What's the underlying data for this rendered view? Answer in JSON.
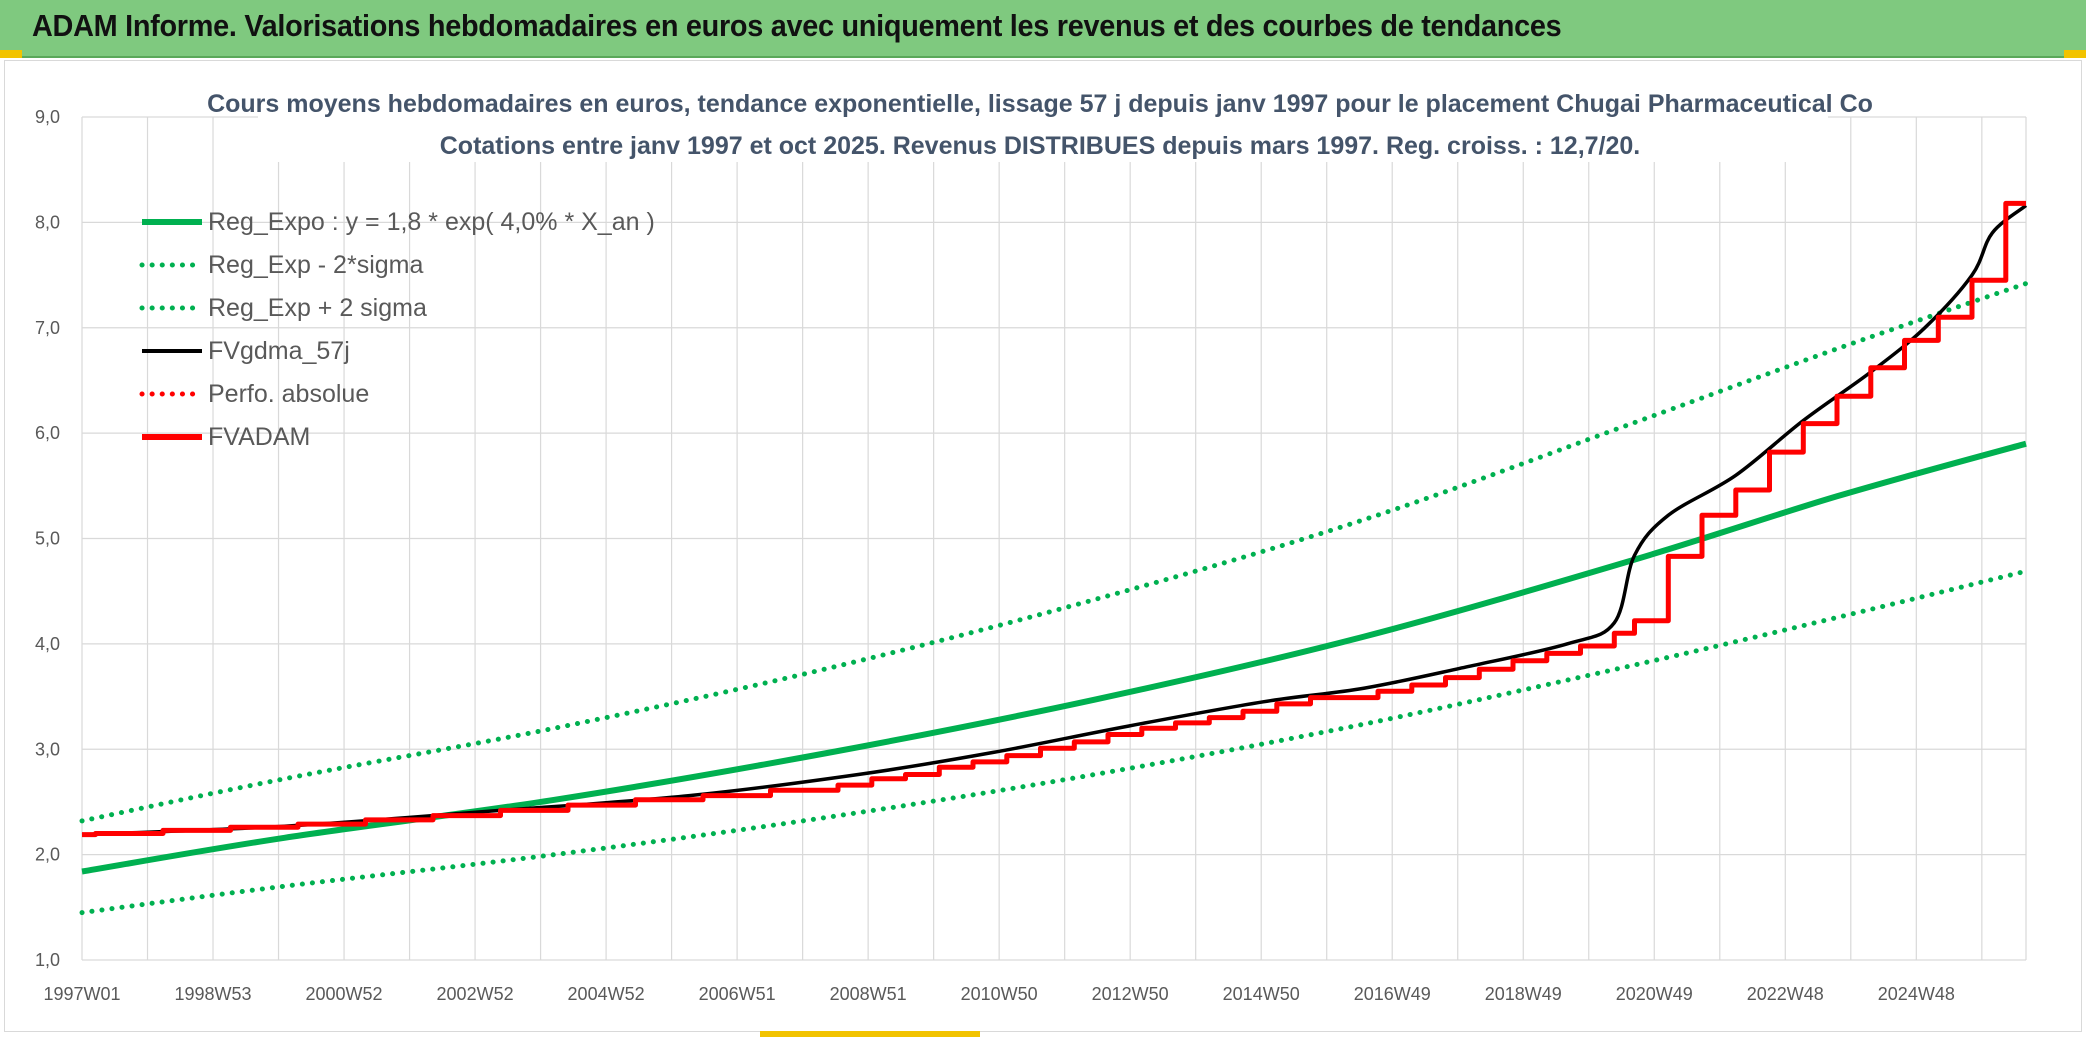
{
  "banner": {
    "title": "ADAM Informe. Valorisations hebdomadaires en euros avec uniquement les revenus et des courbes de tendances"
  },
  "colors": {
    "banner_bg": "#7fc97f",
    "green": "#00b050",
    "red": "#ff0000",
    "black": "#000000",
    "grid": "#d9d9d9",
    "title": "#44546a"
  },
  "chart_data": {
    "type": "line",
    "title": "Cours moyens hebdomadaires en euros, tendance exponentielle, lissage 57 j depuis janv 1997 pour le placement Chugai Pharmaceutical Co",
    "subtitle": "Cotations entre janv 1997 et oct 2025. Revenus DISTRIBUES depuis mars 1997. Reg. croiss. : 12,7/20.",
    "xlabel": "",
    "ylabel": "",
    "x_range": [
      1997.0,
      2025.8
    ],
    "ylim": [
      1.0,
      9.0
    ],
    "y_ticks": [
      "1,0",
      "2,0",
      "3,0",
      "4,0",
      "5,0",
      "6,0",
      "7,0",
      "8,0",
      "9,0"
    ],
    "x_tick_labels": [
      "1997W01",
      "1998W53",
      "2000W52",
      "2002W52",
      "2004W52",
      "2006W51",
      "2008W51",
      "2010W50",
      "2012W50",
      "2014W50",
      "2016W49",
      "2018W49",
      "2020W49",
      "2022W48",
      "2024W48"
    ],
    "grid": true,
    "legend_position": "top-left",
    "series": [
      {
        "name": "Reg_Expo : y = 1,8 * exp( 4,0% *  X_an )",
        "style": "solid",
        "color": "#00b050",
        "points": [
          [
            1997.0,
            1.84
          ],
          [
            2000.0,
            2.16
          ],
          [
            2004.0,
            2.52
          ],
          [
            2008.0,
            2.96
          ],
          [
            2012.0,
            3.47
          ],
          [
            2016.0,
            4.07
          ],
          [
            2020.0,
            4.8
          ],
          [
            2023.0,
            5.4
          ],
          [
            2025.8,
            5.9
          ]
        ]
      },
      {
        "name": "Reg_Exp - 2*sigma",
        "style": "dotted",
        "color": "#00b050",
        "points": [
          [
            1997.0,
            1.45
          ],
          [
            2000.0,
            1.7
          ],
          [
            2004.0,
            2.0
          ],
          [
            2008.0,
            2.35
          ],
          [
            2012.0,
            2.76
          ],
          [
            2016.0,
            3.24
          ],
          [
            2020.0,
            3.8
          ],
          [
            2023.0,
            4.25
          ],
          [
            2025.8,
            4.69
          ]
        ]
      },
      {
        "name": "Reg_Exp + 2 sigma",
        "style": "dotted",
        "color": "#00b050",
        "points": [
          [
            1997.0,
            2.32
          ],
          [
            2000.0,
            2.72
          ],
          [
            2004.0,
            3.2
          ],
          [
            2008.0,
            3.76
          ],
          [
            2012.0,
            4.42
          ],
          [
            2016.0,
            5.18
          ],
          [
            2020.0,
            6.1
          ],
          [
            2023.0,
            6.8
          ],
          [
            2025.8,
            7.42
          ]
        ]
      },
      {
        "name": "FVgdma_57j",
        "style": "solid",
        "color": "#000000",
        "points": [
          [
            1997.0,
            2.19
          ],
          [
            2000.0,
            2.27
          ],
          [
            2003.0,
            2.41
          ],
          [
            2006.0,
            2.56
          ],
          [
            2008.5,
            2.76
          ],
          [
            2010.5,
            2.97
          ],
          [
            2012.5,
            3.22
          ],
          [
            2014.5,
            3.45
          ],
          [
            2016.0,
            3.58
          ],
          [
            2017.5,
            3.78
          ],
          [
            2019.0,
            4.0
          ],
          [
            2019.7,
            4.2
          ],
          [
            2020.0,
            4.84
          ],
          [
            2020.5,
            5.22
          ],
          [
            2021.5,
            5.6
          ],
          [
            2022.5,
            6.12
          ],
          [
            2023.5,
            6.58
          ],
          [
            2024.3,
            7.0
          ],
          [
            2025.0,
            7.5
          ],
          [
            2025.3,
            7.9
          ],
          [
            2025.8,
            8.16
          ]
        ]
      },
      {
        "name": "Perfo. absolue",
        "style": "dotted",
        "color": "#ff0000",
        "points": []
      },
      {
        "name": "FVADAM",
        "style": "step",
        "color": "#ff0000",
        "step_times": [
          1997.0,
          1997.2,
          1998.2,
          1999.2,
          2000.2,
          2001.2,
          2002.2,
          2003.2,
          2004.2,
          2005.2,
          2006.2,
          2007.2,
          2008.2,
          2008.7,
          2009.2,
          2009.7,
          2010.2,
          2010.7,
          2011.2,
          2011.7,
          2012.2,
          2012.7,
          2013.2,
          2013.7,
          2014.2,
          2014.7,
          2015.2,
          2016.2,
          2016.7,
          2017.2,
          2017.7,
          2018.2,
          2018.7,
          2019.2,
          2019.7,
          2020.0,
          2020.5,
          2021.0,
          2021.5,
          2022.0,
          2022.5,
          2023.0,
          2023.5,
          2024.0,
          2024.5,
          2025.0,
          2025.5
        ],
        "step_values": [
          2.19,
          2.2,
          2.23,
          2.26,
          2.29,
          2.33,
          2.37,
          2.42,
          2.47,
          2.52,
          2.56,
          2.61,
          2.66,
          2.72,
          2.76,
          2.83,
          2.88,
          2.94,
          3.01,
          3.07,
          3.14,
          3.2,
          3.25,
          3.3,
          3.36,
          3.43,
          3.49,
          3.55,
          3.61,
          3.68,
          3.76,
          3.84,
          3.91,
          3.98,
          4.1,
          4.22,
          4.83,
          5.22,
          5.46,
          5.82,
          6.09,
          6.35,
          6.62,
          6.88,
          7.1,
          7.45,
          8.18
        ],
        "end_x": 2025.8
      }
    ]
  }
}
